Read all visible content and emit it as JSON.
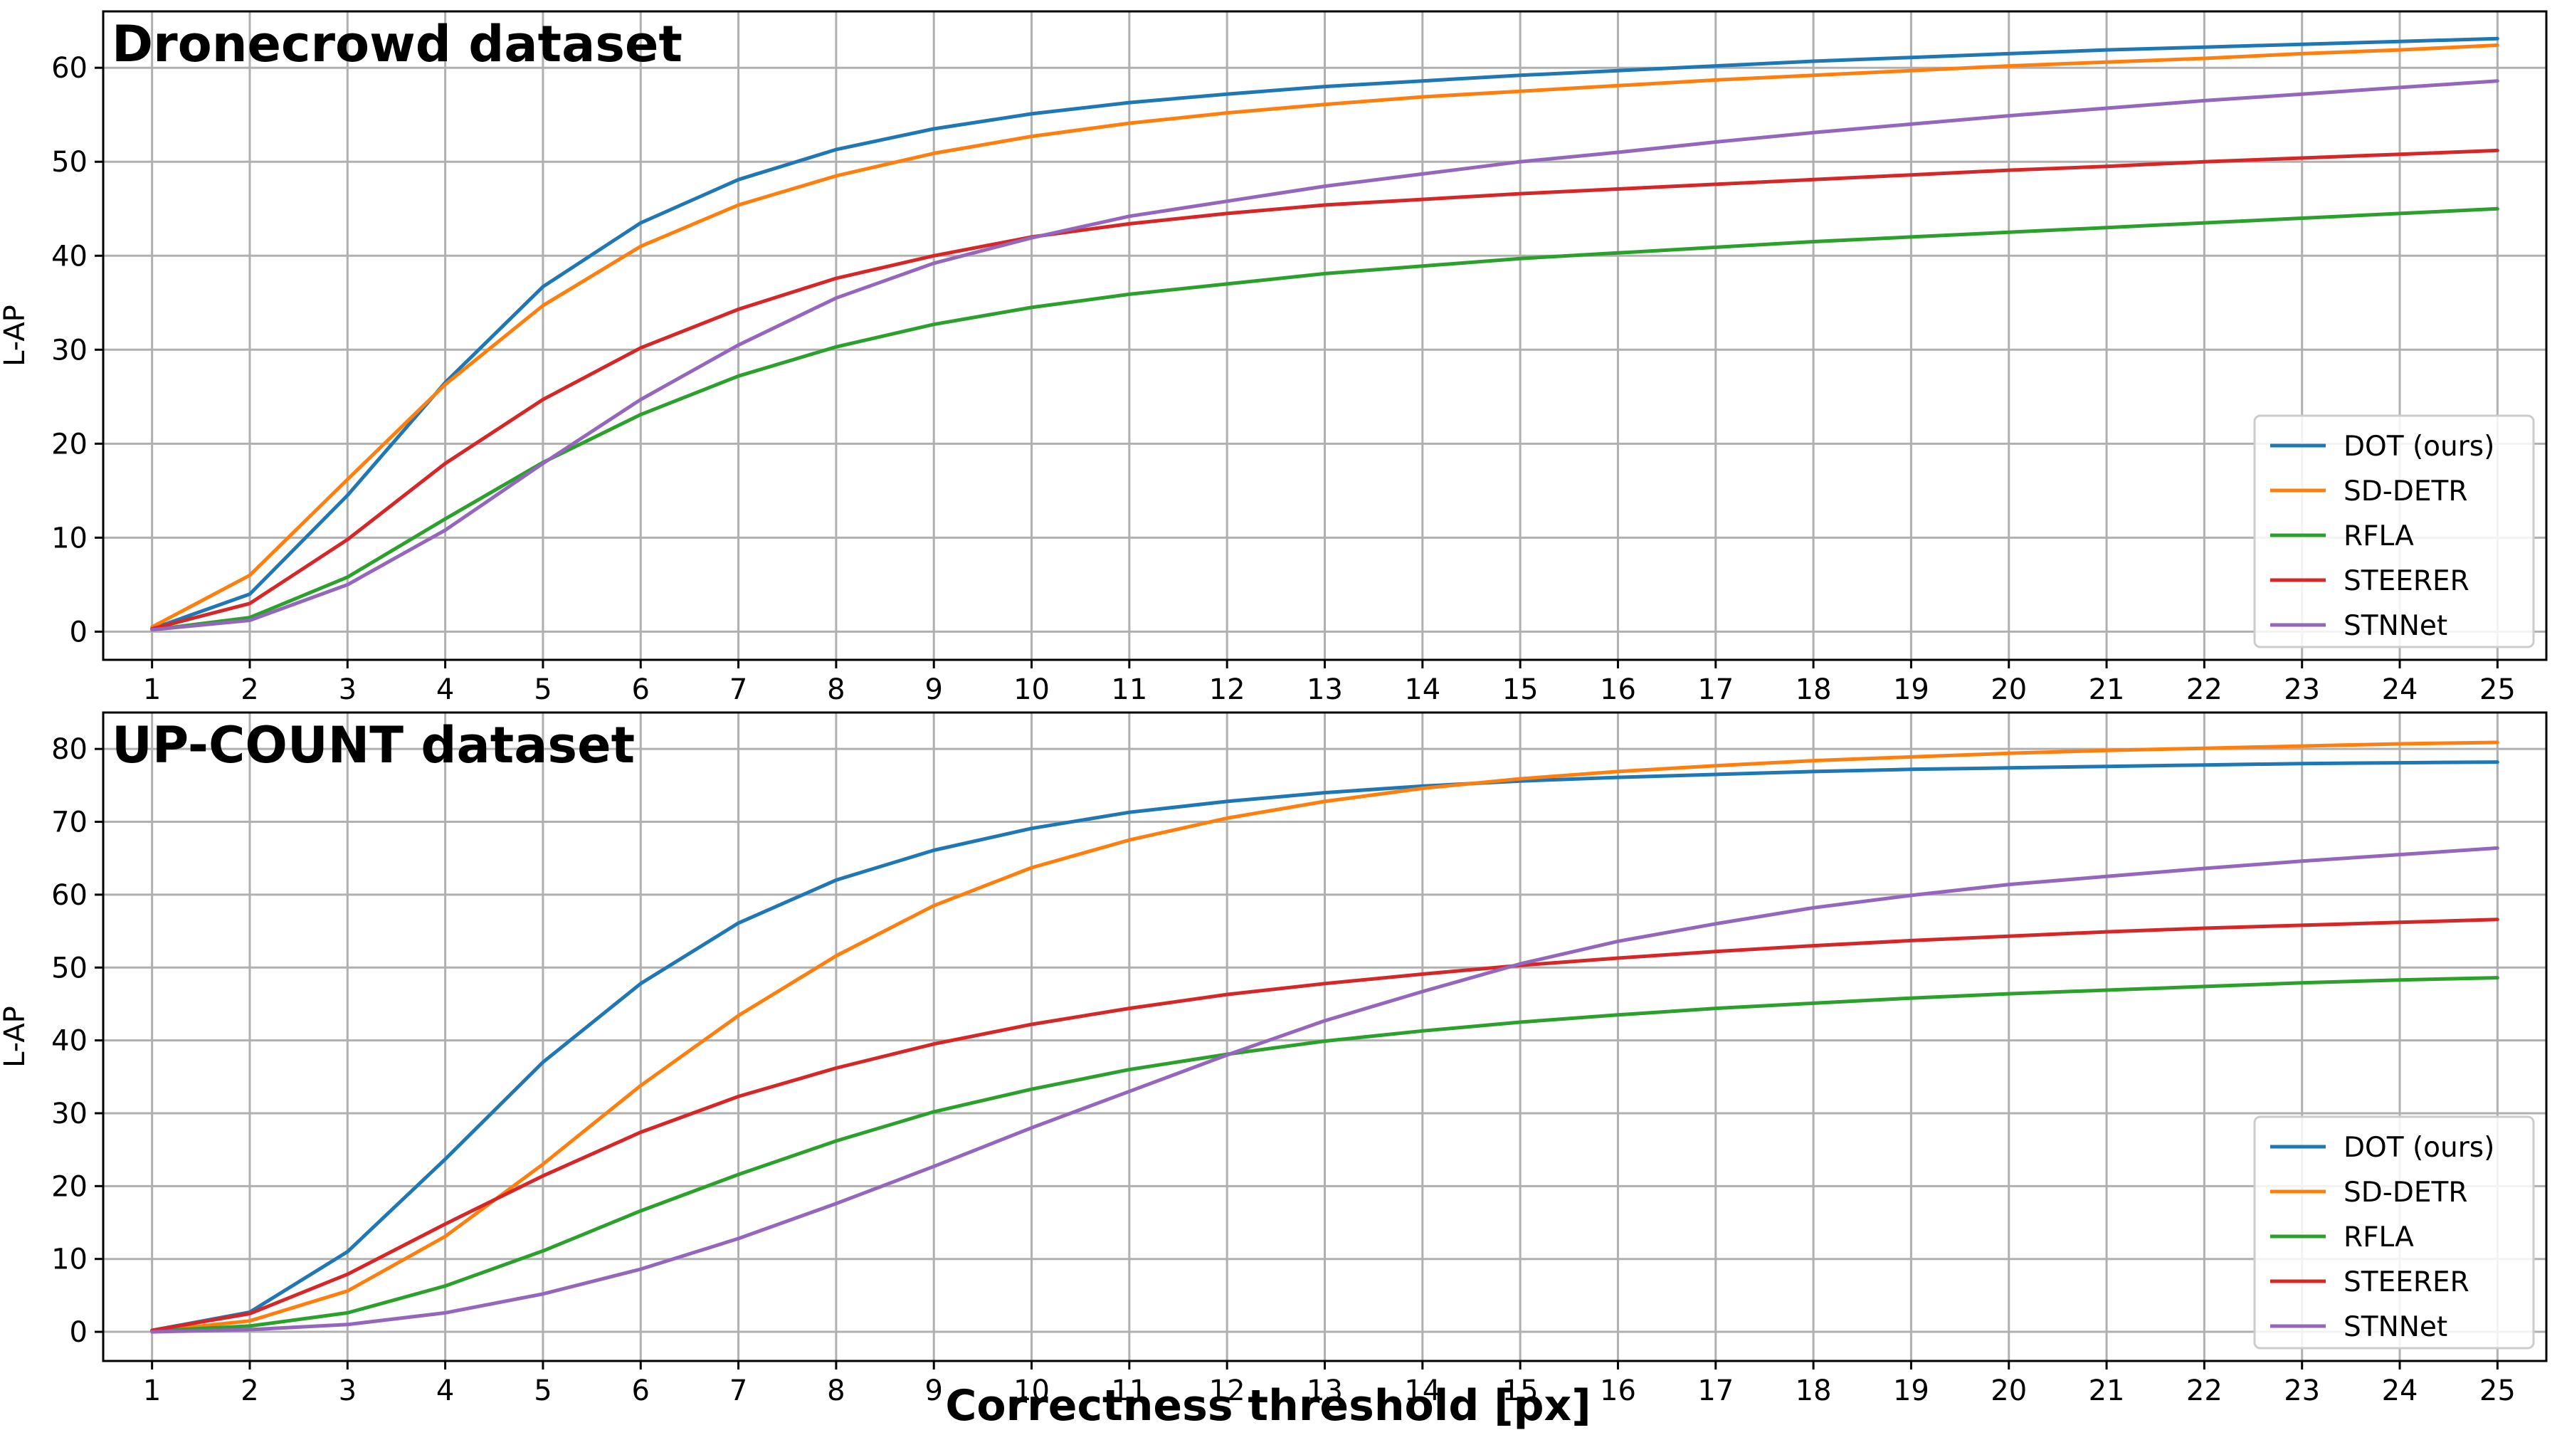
{
  "figure": {
    "xlabel": "Correctness threshold [px]"
  },
  "chart_data": [
    {
      "type": "line",
      "title": "Dronecrowd dataset",
      "xlabel": "",
      "ylabel": "L-AP",
      "x": [
        1,
        2,
        3,
        4,
        5,
        6,
        7,
        8,
        9,
        10,
        11,
        12,
        13,
        14,
        15,
        16,
        17,
        18,
        19,
        20,
        21,
        22,
        23,
        24,
        25
      ],
      "xlim": [
        0.5,
        25.5
      ],
      "ylim": [
        -3,
        66
      ],
      "yticks": [
        0,
        10,
        20,
        30,
        40,
        50,
        60
      ],
      "grid": true,
      "legend_position": "lower-right",
      "series": [
        {
          "name": "DOT (ours)",
          "color": "#1f77b4",
          "values": [
            0.3,
            4.0,
            14.5,
            26.5,
            36.7,
            43.5,
            48.1,
            51.3,
            53.5,
            55.1,
            56.3,
            57.2,
            58.0,
            58.6,
            59.2,
            59.7,
            60.2,
            60.7,
            61.1,
            61.5,
            61.9,
            62.2,
            62.5,
            62.8,
            63.1
          ]
        },
        {
          "name": "SD-DETR",
          "color": "#ff7f0e",
          "values": [
            0.5,
            6.0,
            16.2,
            26.3,
            34.7,
            41.0,
            45.4,
            48.5,
            50.9,
            52.7,
            54.1,
            55.2,
            56.1,
            56.9,
            57.5,
            58.1,
            58.7,
            59.2,
            59.7,
            60.2,
            60.6,
            61.0,
            61.5,
            61.9,
            62.4
          ]
        },
        {
          "name": "RFLA",
          "color": "#2ca02c",
          "values": [
            0.2,
            1.5,
            5.8,
            12.0,
            18.0,
            23.1,
            27.2,
            30.3,
            32.7,
            34.5,
            35.9,
            37.0,
            38.1,
            38.9,
            39.7,
            40.3,
            40.9,
            41.5,
            42.0,
            42.5,
            43.0,
            43.5,
            44.0,
            44.5,
            45.0
          ]
        },
        {
          "name": "STEERER",
          "color": "#d62728",
          "values": [
            0.3,
            3.0,
            9.8,
            17.9,
            24.7,
            30.2,
            34.3,
            37.6,
            40.0,
            42.0,
            43.4,
            44.5,
            45.4,
            46.0,
            46.6,
            47.1,
            47.6,
            48.1,
            48.6,
            49.1,
            49.5,
            50.0,
            50.4,
            50.8,
            51.2
          ]
        },
        {
          "name": "STNNet",
          "color": "#9467bd",
          "values": [
            0.2,
            1.2,
            5.0,
            10.8,
            17.9,
            24.7,
            30.5,
            35.5,
            39.2,
            41.9,
            44.2,
            45.8,
            47.4,
            48.7,
            50.0,
            51.0,
            52.1,
            53.1,
            54.0,
            54.9,
            55.7,
            56.5,
            57.2,
            57.9,
            58.6
          ]
        }
      ]
    },
    {
      "type": "line",
      "title": "UP-COUNT dataset",
      "xlabel": "Correctness threshold [px]",
      "ylabel": "L-AP",
      "x": [
        1,
        2,
        3,
        4,
        5,
        6,
        7,
        8,
        9,
        10,
        11,
        12,
        13,
        14,
        15,
        16,
        17,
        18,
        19,
        20,
        21,
        22,
        23,
        24,
        25
      ],
      "xlim": [
        0.5,
        25.5
      ],
      "ylim": [
        -4,
        85
      ],
      "yticks": [
        0,
        10,
        20,
        30,
        40,
        50,
        60,
        70,
        80
      ],
      "grid": true,
      "legend_position": "lower-right",
      "series": [
        {
          "name": "DOT (ours)",
          "color": "#1f77b4",
          "values": [
            0.2,
            2.7,
            11.0,
            23.7,
            37.0,
            47.8,
            56.1,
            62.0,
            66.1,
            69.1,
            71.3,
            72.8,
            74.0,
            74.9,
            75.6,
            76.1,
            76.5,
            76.9,
            77.2,
            77.4,
            77.6,
            77.8,
            78.0,
            78.1,
            78.2
          ]
        },
        {
          "name": "SD-DETR",
          "color": "#ff7f0e",
          "values": [
            0.1,
            1.5,
            5.6,
            13.1,
            23.0,
            33.8,
            43.4,
            51.6,
            58.5,
            63.7,
            67.5,
            70.5,
            72.8,
            74.6,
            75.9,
            76.9,
            77.7,
            78.4,
            78.9,
            79.4,
            79.8,
            80.1,
            80.4,
            80.7,
            80.9
          ]
        },
        {
          "name": "RFLA",
          "color": "#2ca02c",
          "values": [
            0.1,
            0.8,
            2.6,
            6.3,
            11.1,
            16.6,
            21.6,
            26.2,
            30.2,
            33.3,
            36.0,
            38.1,
            39.9,
            41.3,
            42.5,
            43.5,
            44.4,
            45.1,
            45.8,
            46.4,
            46.9,
            47.4,
            47.9,
            48.3,
            48.6
          ]
        },
        {
          "name": "STEERER",
          "color": "#d62728",
          "values": [
            0.2,
            2.5,
            7.9,
            14.8,
            21.4,
            27.4,
            32.3,
            36.2,
            39.5,
            42.2,
            44.4,
            46.3,
            47.8,
            49.1,
            50.3,
            51.3,
            52.2,
            53.0,
            53.7,
            54.3,
            54.9,
            55.4,
            55.8,
            56.2,
            56.6
          ]
        },
        {
          "name": "STNNet",
          "color": "#9467bd",
          "values": [
            0.0,
            0.3,
            1.0,
            2.6,
            5.2,
            8.6,
            12.8,
            17.6,
            22.7,
            28.0,
            33.0,
            38.0,
            42.7,
            46.7,
            50.5,
            53.6,
            56.0,
            58.2,
            59.9,
            61.4,
            62.5,
            63.6,
            64.6,
            65.5,
            66.4
          ]
        }
      ]
    }
  ]
}
